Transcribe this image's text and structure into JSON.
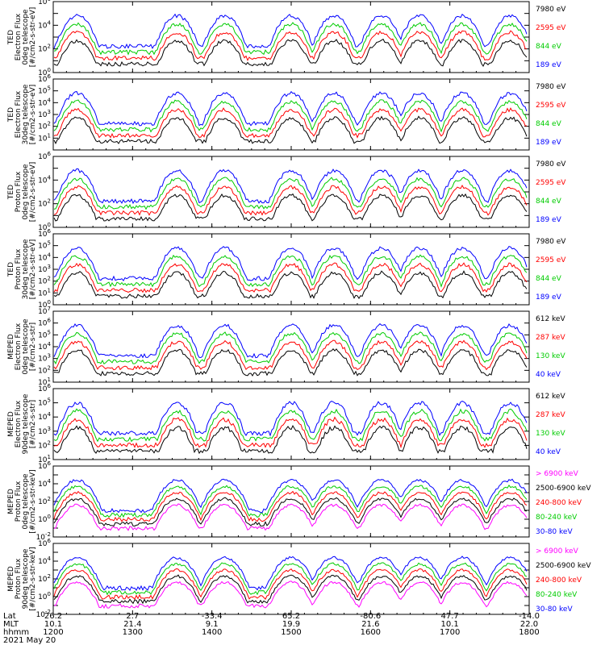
{
  "chart_data": [
    {
      "type": "line",
      "ylabel": [
        "TED",
        "Electron Flux",
        "0deg telescope",
        "[#/cm2-s-str-eV]"
      ],
      "ylog": true,
      "ylim_exp": [
        0,
        6
      ],
      "yticks": [
        "10^0",
        "10^2",
        "10^4",
        "10^6"
      ],
      "series": [
        {
          "name": "7980 eV",
          "color": "#000000"
        },
        {
          "name": "2595 eV",
          "color": "#ff0000"
        },
        {
          "name": "844 eV",
          "color": "#00cc00"
        },
        {
          "name": "189 eV",
          "color": "#0000ff"
        }
      ]
    },
    {
      "type": "line",
      "ylabel": [
        "TED",
        "Electron Flux",
        "30deg telescope",
        "[#/cm2-s-str-eV]"
      ],
      "ylog": true,
      "ylim_exp": [
        0,
        6
      ],
      "yticks": [
        "10^1",
        "10^2",
        "10^3",
        "10^4",
        "10^5",
        "10^6"
      ],
      "series": [
        {
          "name": "7980 eV",
          "color": "#000000"
        },
        {
          "name": "2595 eV",
          "color": "#ff0000"
        },
        {
          "name": "844 eV",
          "color": "#00cc00"
        },
        {
          "name": "189 eV",
          "color": "#0000ff"
        }
      ]
    },
    {
      "type": "line",
      "ylabel": [
        "TED",
        "Proton Flux",
        "0deg telescope",
        "[#/cm2-s-str-eV]"
      ],
      "ylog": true,
      "ylim_exp": [
        0,
        6
      ],
      "yticks": [
        "10^0",
        "10^2",
        "10^4",
        "10^6"
      ],
      "series": [
        {
          "name": "7980 eV",
          "color": "#000000"
        },
        {
          "name": "2595 eV",
          "color": "#ff0000"
        },
        {
          "name": "844 eV",
          "color": "#00cc00"
        },
        {
          "name": "189 eV",
          "color": "#0000ff"
        }
      ]
    },
    {
      "type": "line",
      "ylabel": [
        "TED",
        "Proton Flux",
        "30deg telescope",
        "[#/cm2-s-str-eV]"
      ],
      "ylog": true,
      "ylim_exp": [
        0,
        6
      ],
      "yticks": [
        "10^0",
        "10^1",
        "10^2",
        "10^3",
        "10^4",
        "10^5",
        "10^6"
      ],
      "series": [
        {
          "name": "7980 eV",
          "color": "#000000"
        },
        {
          "name": "2595 eV",
          "color": "#ff0000"
        },
        {
          "name": "844 eV",
          "color": "#00cc00"
        },
        {
          "name": "189 eV",
          "color": "#0000ff"
        }
      ]
    },
    {
      "type": "line",
      "ylabel": [
        "MEPED",
        "Electron Flux",
        "0deg telescope",
        "[#/cm2-s-str]"
      ],
      "ylog": true,
      "ylim_exp": [
        1,
        7
      ],
      "yticks": [
        "10^1",
        "10^2",
        "10^3",
        "10^4",
        "10^5",
        "10^6",
        "10^7"
      ],
      "series": [
        {
          "name": "612 keV",
          "color": "#000000"
        },
        {
          "name": "287 keV",
          "color": "#ff0000"
        },
        {
          "name": "130 keV",
          "color": "#00cc00"
        },
        {
          "name": "40 keV",
          "color": "#0000ff"
        }
      ]
    },
    {
      "type": "line",
      "ylabel": [
        "MEPED",
        "Electron Flux",
        "90deg telescope",
        "[#/cm2-s-str]"
      ],
      "ylog": true,
      "ylim_exp": [
        1,
        6
      ],
      "yticks": [
        "10^1",
        "10^2",
        "10^3",
        "10^4",
        "10^5",
        "10^6"
      ],
      "series": [
        {
          "name": "612 keV",
          "color": "#000000"
        },
        {
          "name": "287 keV",
          "color": "#ff0000"
        },
        {
          "name": "130 keV",
          "color": "#00cc00"
        },
        {
          "name": "40 keV",
          "color": "#0000ff"
        }
      ]
    },
    {
      "type": "line",
      "ylabel": [
        "MEPED",
        "Proton Flux",
        "0deg telescope",
        "[#/cm2-s-str-keV]"
      ],
      "ylog": true,
      "ylim_exp": [
        -2,
        6
      ],
      "yticks": [
        "10^-2",
        "10^0",
        "10^2",
        "10^4",
        "10^6"
      ],
      "series": [
        {
          "name": "> 6900 keV",
          "color": "#ff00ff"
        },
        {
          "name": "2500-6900 keV",
          "color": "#000000"
        },
        {
          "name": "240-800 keV",
          "color": "#ff0000"
        },
        {
          "name": "80-240 keV",
          "color": "#00cc00"
        },
        {
          "name": "30-80 keV",
          "color": "#0000ff"
        }
      ]
    },
    {
      "type": "line",
      "ylabel": [
        "MEPED",
        "Proton Flux",
        "90deg telescope",
        "[#/cm2-s-str-keV]"
      ],
      "ylog": true,
      "ylim_exp": [
        -2,
        6
      ],
      "yticks": [
        "10^-2",
        "10^0",
        "10^2",
        "10^4",
        "10^6"
      ],
      "series": [
        {
          "name": "> 6900 keV",
          "color": "#ff00ff"
        },
        {
          "name": "2500-6900 keV",
          "color": "#000000"
        },
        {
          "name": "240-800 keV",
          "color": "#ff0000"
        },
        {
          "name": "80-240 keV",
          "color": "#00cc00"
        },
        {
          "name": "30-80 keV",
          "color": "#0000ff"
        }
      ]
    }
  ],
  "x_axis": {
    "row_labels": [
      "Lat",
      "MLT",
      "hhmm",
      "2021 May 20"
    ],
    "ticks": [
      {
        "lat": "26.2",
        "mlt": "10.1",
        "hhmm": "1200"
      },
      {
        "lat": "2.7",
        "mlt": "21.4",
        "hhmm": "1300"
      },
      {
        "lat": "-33.4",
        "mlt": "9.1",
        "hhmm": "1400"
      },
      {
        "lat": "65.2",
        "mlt": "19.9",
        "hhmm": "1500"
      },
      {
        "lat": "-80.6",
        "mlt": "21.6",
        "hhmm": "1600"
      },
      {
        "lat": "47.7",
        "mlt": "10.1",
        "hhmm": "1700"
      },
      {
        "lat": "-14.0",
        "mlt": "22.0",
        "hhmm": "1800"
      }
    ],
    "range": [
      "1200",
      "1800"
    ]
  },
  "colors": {
    "black": "#000000",
    "red": "#ff0000",
    "green": "#00cc00",
    "blue": "#0000ff",
    "magenta": "#ff00ff"
  }
}
